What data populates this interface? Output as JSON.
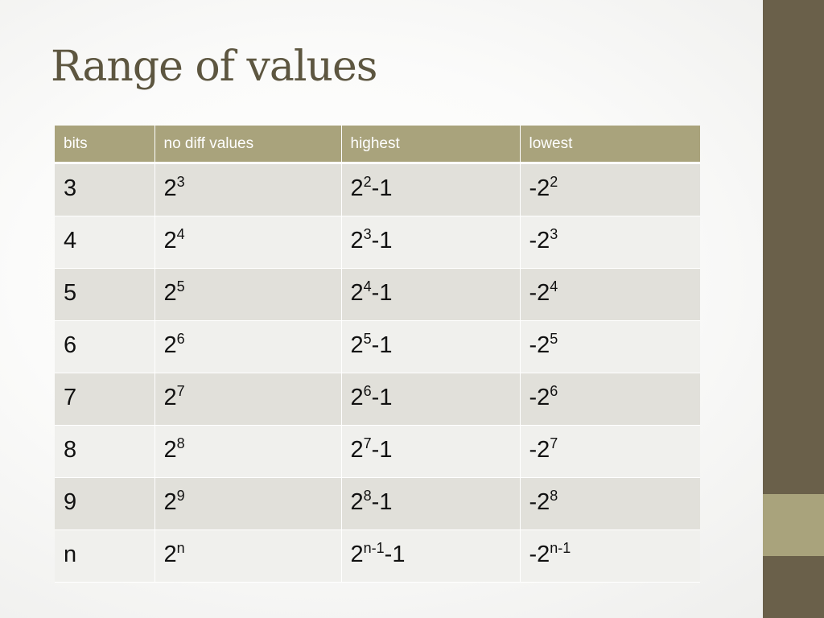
{
  "slide": {
    "title": "Range of values"
  },
  "theme": {
    "sidebar_color": "#6a604a",
    "accent_color": "#a9a37c",
    "row_odd_color": "#e1e0da",
    "row_even_color": "#f0f0ed"
  },
  "table": {
    "headers": [
      "bits",
      "no diff values",
      "highest",
      "lowest"
    ],
    "rows": [
      {
        "bits": "3",
        "no_diff": {
          "base": "2",
          "exp": "3"
        },
        "highest": {
          "base": "2",
          "exp": "2",
          "suffix": "-1"
        },
        "lowest": {
          "prefix": "-2",
          "exp": "2"
        }
      },
      {
        "bits": "4",
        "no_diff": {
          "base": "2",
          "exp": "4"
        },
        "highest": {
          "base": "2",
          "exp": "3",
          "suffix": "-1"
        },
        "lowest": {
          "prefix": "-2",
          "exp": "3"
        }
      },
      {
        "bits": "5",
        "no_diff": {
          "base": "2",
          "exp": "5"
        },
        "highest": {
          "base": "2",
          "exp": "4",
          "suffix": "-1"
        },
        "lowest": {
          "prefix": "-2",
          "exp": "4"
        }
      },
      {
        "bits": "6",
        "no_diff": {
          "base": "2",
          "exp": "6"
        },
        "highest": {
          "base": "2",
          "exp": "5",
          "suffix": "-1"
        },
        "lowest": {
          "prefix": "-2",
          "exp": "5"
        }
      },
      {
        "bits": "7",
        "no_diff": {
          "base": "2",
          "exp": "7"
        },
        "highest": {
          "base": "2",
          "exp": "6",
          "suffix": "-1"
        },
        "lowest": {
          "prefix": "-2",
          "exp": "6"
        }
      },
      {
        "bits": "8",
        "no_diff": {
          "base": "2",
          "exp": "8"
        },
        "highest": {
          "base": "2",
          "exp": "7",
          "suffix": "-1"
        },
        "lowest": {
          "prefix": "-2",
          "exp": "7"
        }
      },
      {
        "bits": "9",
        "no_diff": {
          "base": "2",
          "exp": "9"
        },
        "highest": {
          "base": "2",
          "exp": "8",
          "suffix": "-1"
        },
        "lowest": {
          "prefix": "-2",
          "exp": "8"
        }
      },
      {
        "bits": "n",
        "no_diff": {
          "base": "2",
          "exp": "n"
        },
        "highest": {
          "base": "2",
          "exp": "n-1",
          "suffix": "-1"
        },
        "lowest": {
          "prefix": "-2",
          "exp": "n-1"
        }
      }
    ]
  }
}
